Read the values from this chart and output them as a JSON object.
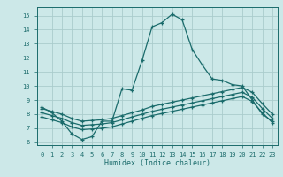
{
  "xlabel": "Humidex (Indice chaleur)",
  "bg_color": "#cce8e8",
  "grid_color": "#aacccc",
  "line_color": "#1a6b6b",
  "xlim": [
    -0.5,
    23.5
  ],
  "ylim": [
    5.8,
    15.6
  ],
  "yticks": [
    6,
    7,
    8,
    9,
    10,
    11,
    12,
    13,
    14,
    15
  ],
  "xticks": [
    0,
    1,
    2,
    3,
    4,
    5,
    6,
    7,
    8,
    9,
    10,
    11,
    12,
    13,
    14,
    15,
    16,
    17,
    18,
    19,
    20,
    21,
    22,
    23
  ],
  "line1_x": [
    0,
    1,
    2,
    3,
    4,
    5,
    6,
    7,
    8,
    9,
    10,
    11,
    12,
    13,
    14,
    15,
    16,
    17,
    18,
    19,
    20,
    21,
    22,
    23
  ],
  "line1_y": [
    8.5,
    8.1,
    7.5,
    6.6,
    6.2,
    6.4,
    7.5,
    7.5,
    9.8,
    9.7,
    11.8,
    14.2,
    14.5,
    15.1,
    14.7,
    12.6,
    11.5,
    10.5,
    10.4,
    10.1,
    10.0,
    9.0,
    8.0,
    7.5
  ],
  "line2_x": [
    0,
    1,
    2,
    3,
    4,
    5,
    6,
    7,
    8,
    9,
    10,
    11,
    12,
    13,
    14,
    15,
    16,
    17,
    18,
    19,
    20,
    21,
    22,
    23
  ],
  "line2_y": [
    7.8,
    7.6,
    7.4,
    7.1,
    6.9,
    6.95,
    7.0,
    7.1,
    7.3,
    7.5,
    7.7,
    7.9,
    8.05,
    8.2,
    8.35,
    8.5,
    8.65,
    8.8,
    8.95,
    9.1,
    9.25,
    8.9,
    8.1,
    7.4
  ],
  "line3_x": [
    0,
    1,
    2,
    3,
    4,
    5,
    6,
    7,
    8,
    9,
    10,
    11,
    12,
    13,
    14,
    15,
    16,
    17,
    18,
    19,
    20,
    21,
    22,
    23
  ],
  "line3_y": [
    8.1,
    7.9,
    7.7,
    7.4,
    7.2,
    7.25,
    7.3,
    7.4,
    7.6,
    7.8,
    8.0,
    8.2,
    8.35,
    8.5,
    8.65,
    8.8,
    8.95,
    9.1,
    9.25,
    9.4,
    9.55,
    9.2,
    8.4,
    7.7
  ],
  "line4_x": [
    0,
    1,
    2,
    3,
    4,
    5,
    6,
    7,
    8,
    9,
    10,
    11,
    12,
    13,
    14,
    15,
    16,
    17,
    18,
    19,
    20,
    21,
    22,
    23
  ],
  "line4_y": [
    8.4,
    8.2,
    8.0,
    7.7,
    7.5,
    7.55,
    7.6,
    7.7,
    7.9,
    8.1,
    8.3,
    8.55,
    8.7,
    8.85,
    9.0,
    9.15,
    9.3,
    9.45,
    9.6,
    9.75,
    9.9,
    9.55,
    8.75,
    8.0
  ]
}
